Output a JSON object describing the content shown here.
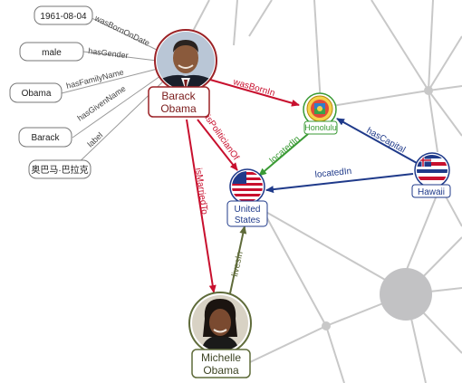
{
  "literals": [
    {
      "id": "birthdate",
      "value": "1961-08-04",
      "predicate": "wasBornOnDate"
    },
    {
      "id": "gender",
      "value": "male",
      "predicate": "hasGender"
    },
    {
      "id": "familyname",
      "value": "Obama",
      "predicate": "hasFamilyName"
    },
    {
      "id": "givenname",
      "value": "Barack",
      "predicate": "hasGivenName"
    },
    {
      "id": "label",
      "value": "奥巴马·巴拉克",
      "predicate": "label"
    }
  ],
  "entities": {
    "barack": {
      "line1": "Barack",
      "line2": "Obama",
      "border": "#9b2226"
    },
    "michelle": {
      "line1": "Michelle",
      "line2": "Obama",
      "border": "#5f6b3a"
    },
    "honolulu": {
      "line1": "Honolulu",
      "border": "#3a9a34"
    },
    "hawaii": {
      "line1": "Hawaii",
      "border": "#1f3a8a"
    },
    "usa": {
      "line1": "United",
      "line2": "States",
      "border": "#1f3a8a"
    }
  },
  "relations": {
    "wasBornIn": {
      "label": "wasBornIn",
      "color": "#c8102e"
    },
    "isPoliticianOf": {
      "label": "isPoliticianOf",
      "color": "#c8102e"
    },
    "isMarriedTo": {
      "label": "isMarriedTo",
      "color": "#c8102e"
    },
    "livesIn": {
      "label": "livesIn",
      "color": "#5f6b3a"
    },
    "locatedIn_honolulu": {
      "label": "locatedIn",
      "color": "#3a9a34"
    },
    "hasCapital": {
      "label": "hasCapital",
      "color": "#1f3a8a"
    },
    "locatedIn_hawaii": {
      "label": "locatedIn",
      "color": "#1f3a8a"
    }
  }
}
